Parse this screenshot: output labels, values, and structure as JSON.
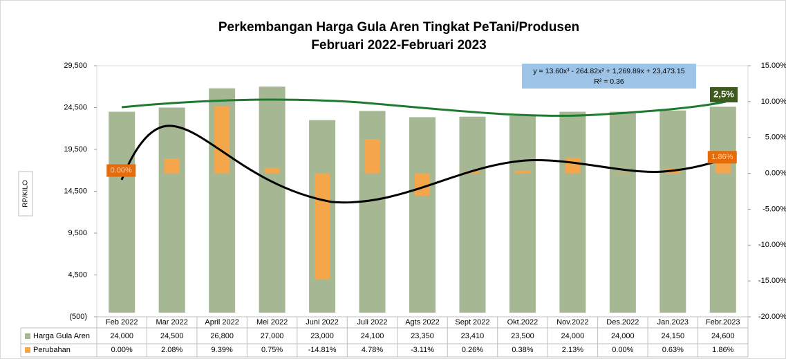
{
  "chart_data": {
    "type": "bar",
    "title": "Perkembangan Harga  Gula Aren Tingkat PeTani/Produsen",
    "subtitle": "Februari  2022-Februari 2023",
    "y_label": "RP/KILO",
    "categories": [
      "Feb 2022",
      "Mar 2022",
      "April 2022",
      "Mei 2022",
      "Juni 2022",
      "Juli 2022",
      "Agts 2022",
      "Sept 2022",
      "Okt.2022",
      "Nov.2022",
      "Des.2022",
      "Jan.2023",
      "Febr.2023"
    ],
    "series": [
      {
        "name": "Harga Gula Aren",
        "color": "#a5b793",
        "values": [
          24000,
          24500,
          26800,
          27000,
          23000,
          24100,
          23350,
          23410,
          23500,
          24000,
          24000,
          24150,
          24600
        ],
        "value_labels": [
          "24,000",
          "24,500",
          "26,800",
          "27,000",
          "23,000",
          "24,100",
          "23,350",
          "23,410",
          "23,500",
          "24,000",
          "24,000",
          "24,150",
          "24,600"
        ]
      },
      {
        "name": "Perubahan",
        "color": "#f5a54a",
        "axis": "y2",
        "values": [
          0,
          2.08,
          9.39,
          0.75,
          -14.81,
          4.78,
          -3.11,
          0.26,
          0.38,
          2.13,
          0,
          0.63,
          1.86
        ],
        "value_labels": [
          "0.00%",
          "2.08%",
          "9.39%",
          "0.75%",
          "-14.81%",
          "4.78%",
          "-3.11%",
          "0.26%",
          "0.38%",
          "2.13%",
          "0.00%",
          "0.63%",
          "1.86%"
        ]
      }
    ],
    "ylim": [
      -500,
      29500
    ],
    "yticks": [
      {
        "value": -500,
        "label": "(500)"
      },
      {
        "value": 4500,
        "label": "4,500"
      },
      {
        "value": 9500,
        "label": "9,500"
      },
      {
        "value": 14500,
        "label": "14,500"
      },
      {
        "value": 19500,
        "label": "19,500"
      },
      {
        "value": 24500,
        "label": "24,500"
      },
      {
        "value": 29500,
        "label": "29,500"
      }
    ],
    "y2lim": [
      -20,
      15
    ],
    "y2ticks": [
      {
        "value": -20,
        "label": "-20.00%"
      },
      {
        "value": -15,
        "label": "-15.00%"
      },
      {
        "value": -10,
        "label": "-10.00%"
      },
      {
        "value": -5,
        "label": "-5.00%"
      },
      {
        "value": 0,
        "label": "0.00%"
      },
      {
        "value": 5,
        "label": "5.00%"
      },
      {
        "value": 10,
        "label": "10.00%"
      },
      {
        "value": 15,
        "label": "15.00%"
      }
    ],
    "trendline_equation": "y = 13.60x³ - 264.82x² + 1,269.89x + 23,473.15",
    "trendline_r2": "R² = 0.36",
    "annotation": "2,5%"
  }
}
